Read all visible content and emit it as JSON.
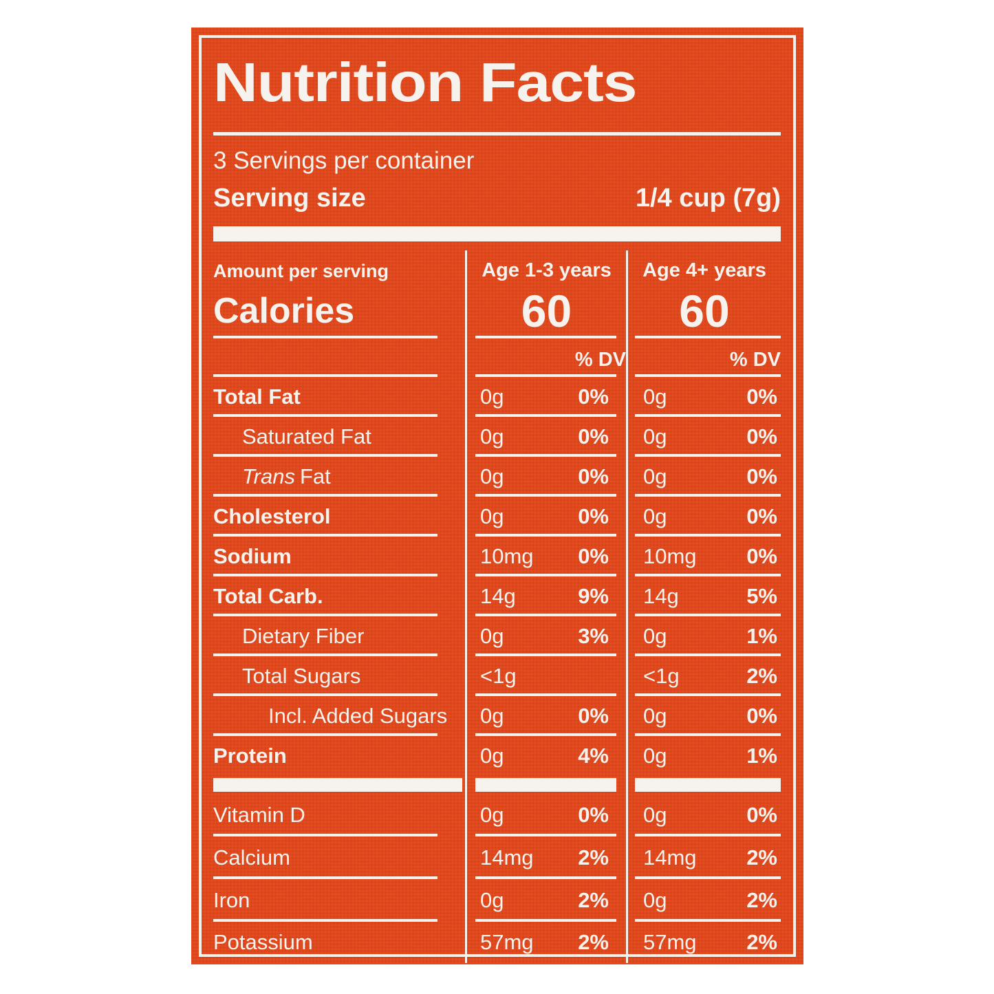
{
  "colors": {
    "label_background": "#e0491e",
    "label_foreground": "#f6f3ef",
    "page_background": "#ffffff"
  },
  "header": {
    "title": "Nutrition Facts",
    "servings_per_container": "3 Servings per container",
    "serving_size_label": "Serving size",
    "serving_size_value": "1/4 cup (7g)"
  },
  "calories_section": {
    "amount_per_serving": "Amount per serving",
    "calories_label": "Calories",
    "col1_header": "Age 1-3 years",
    "col2_header": "Age 4+ years",
    "col1_calories": "60",
    "col2_calories": "60",
    "col1_dv_header": "% DV",
    "col2_dv_header": "% DV"
  },
  "rows": [
    {
      "label": "Total Fat",
      "col1_amount": "0g",
      "col1_dv": "0%",
      "col2_amount": "0g",
      "col2_dv": "0%"
    },
    {
      "label": "Saturated Fat",
      "col1_amount": "0g",
      "col1_dv": "0%",
      "col2_amount": "0g",
      "col2_dv": "0%"
    },
    {
      "label_italic": "Trans",
      "label": "Fat",
      "col1_amount": "0g",
      "col1_dv": "0%",
      "col2_amount": "0g",
      "col2_dv": "0%"
    },
    {
      "label": "Cholesterol",
      "col1_amount": "0g",
      "col1_dv": "0%",
      "col2_amount": "0g",
      "col2_dv": "0%"
    },
    {
      "label": "Sodium",
      "col1_amount": "10mg",
      "col1_dv": "0%",
      "col2_amount": "10mg",
      "col2_dv": "0%"
    },
    {
      "label": "Total Carb.",
      "col1_amount": "14g",
      "col1_dv": "9%",
      "col2_amount": "14g",
      "col2_dv": "5%"
    },
    {
      "label": "Dietary Fiber",
      "col1_amount": "0g",
      "col1_dv": "3%",
      "col2_amount": "0g",
      "col2_dv": "1%"
    },
    {
      "label": "Total Sugars",
      "col1_amount": "<1g",
      "col1_dv": "",
      "col2_amount": "<1g",
      "col2_dv": "2%"
    },
    {
      "label": "Incl. Added Sugars",
      "col1_amount": "0g",
      "col1_dv": "0%",
      "col2_amount": "0g",
      "col2_dv": "0%"
    },
    {
      "label": "Protein",
      "col1_amount": "0g",
      "col1_dv": "4%",
      "col2_amount": "0g",
      "col2_dv": "1%"
    },
    {
      "label": "Vitamin D",
      "col1_amount": "0g",
      "col1_dv": "0%",
      "col2_amount": "0g",
      "col2_dv": "0%"
    },
    {
      "label": "Calcium",
      "col1_amount": "14mg",
      "col1_dv": "2%",
      "col2_amount": "14mg",
      "col2_dv": "2%"
    },
    {
      "label": "Iron",
      "col1_amount": "0g",
      "col1_dv": "2%",
      "col2_amount": "0g",
      "col2_dv": "2%"
    },
    {
      "label": "Potassium",
      "col1_amount": "57mg",
      "col1_dv": "2%",
      "col2_amount": "57mg",
      "col2_dv": "2%"
    }
  ]
}
